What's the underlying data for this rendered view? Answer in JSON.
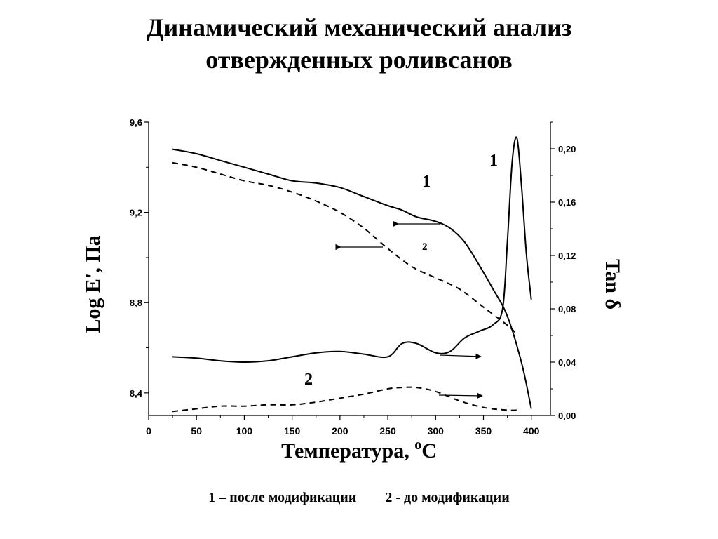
{
  "title": {
    "line1": "Динамический механический анализ",
    "line2": "отвержденных роливсанов"
  },
  "legend": {
    "item1": "1 – после модификации",
    "item2": "2 - до модификации"
  },
  "chart_data": {
    "type": "line",
    "title": "Динамический механический анализ отвержденных роливсанов",
    "xlabel_main": "Температура, ",
    "xlabel_sup": "o",
    "xlabel_tail": "C",
    "ylabel_left": "Log E', Па",
    "ylabel_right": "Tan δ",
    "xlim": [
      0,
      420
    ],
    "ylim_left": [
      8.3,
      9.6
    ],
    "ylim_right": [
      0.0,
      0.22
    ],
    "x_ticks": [
      "0",
      "50",
      "100",
      "150",
      "200",
      "250",
      "300",
      "350",
      "400"
    ],
    "y_left_ticks": [
      "9,6",
      "9,2",
      "8,8",
      "8,4"
    ],
    "y_right_ticks": [
      "0,20",
      "0,16",
      "0,12",
      "0,08",
      "0,04",
      "0,00"
    ],
    "annotations": {
      "tan_peak_1": "1",
      "modulus_1": "1",
      "modulus_2": "2",
      "tan_2": "2"
    },
    "series": [
      {
        "name": "1 – после модификации",
        "axis": "left",
        "style": "solid",
        "x": [
          25,
          50,
          75,
          100,
          125,
          150,
          175,
          200,
          225,
          250,
          265,
          280,
          300,
          315,
          330,
          345,
          360,
          375,
          390,
          400
        ],
        "y": [
          9.48,
          9.46,
          9.43,
          9.4,
          9.37,
          9.34,
          9.33,
          9.31,
          9.27,
          9.23,
          9.21,
          9.18,
          9.16,
          9.13,
          9.07,
          8.97,
          8.86,
          8.74,
          8.53,
          8.33
        ]
      },
      {
        "name": "2 - до модификации",
        "axis": "left",
        "style": "dashed",
        "x": [
          25,
          50,
          75,
          100,
          125,
          150,
          175,
          200,
          225,
          250,
          275,
          300,
          325,
          350,
          375,
          385
        ],
        "y": [
          9.42,
          9.4,
          9.37,
          9.34,
          9.32,
          9.29,
          9.25,
          9.2,
          9.13,
          9.04,
          8.96,
          8.91,
          8.86,
          8.78,
          8.7,
          8.66
        ]
      },
      {
        "name": "1 – после модификации",
        "axis": "right",
        "style": "solid",
        "x": [
          25,
          50,
          75,
          100,
          125,
          150,
          175,
          200,
          225,
          250,
          265,
          280,
          300,
          315,
          330,
          345,
          360,
          370,
          375,
          380,
          385,
          390,
          395,
          400
        ],
        "y": [
          0.044,
          0.043,
          0.041,
          0.04,
          0.041,
          0.044,
          0.047,
          0.048,
          0.046,
          0.044,
          0.054,
          0.054,
          0.047,
          0.048,
          0.058,
          0.063,
          0.068,
          0.08,
          0.13,
          0.19,
          0.208,
          0.17,
          0.12,
          0.087
        ]
      },
      {
        "name": "2 - до модификации",
        "axis": "right",
        "style": "dashed",
        "x": [
          25,
          50,
          75,
          100,
          125,
          150,
          175,
          200,
          225,
          250,
          265,
          280,
          300,
          325,
          350,
          375,
          385
        ],
        "y": [
          0.003,
          0.005,
          0.007,
          0.007,
          0.008,
          0.008,
          0.01,
          0.013,
          0.016,
          0.02,
          0.021,
          0.021,
          0.018,
          0.011,
          0.006,
          0.004,
          0.004
        ]
      }
    ]
  }
}
